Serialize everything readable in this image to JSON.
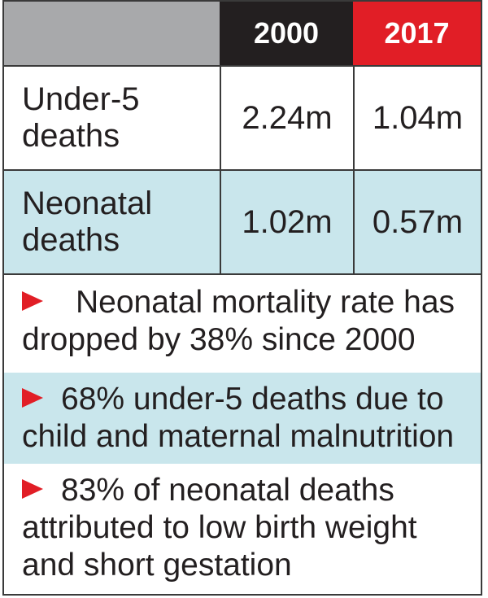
{
  "colors": {
    "header_gray": "#a8a9ab",
    "header_dark": "#231f20",
    "header_red": "#e11e26",
    "row_tint": "#c9e6ec",
    "arrow_red": "#e11e26"
  },
  "chart_data": {
    "type": "table",
    "columns": [
      "",
      "2000",
      "2017"
    ],
    "rows": [
      {
        "label": "Under-5 deaths",
        "label_lines": [
          "Under-5",
          "deaths"
        ],
        "values": [
          "2.24m",
          "1.04m"
        ]
      },
      {
        "label": "Neonatal deaths",
        "label_lines": [
          "Neonatal",
          "deaths"
        ],
        "values": [
          "1.02m",
          "0.57m"
        ]
      }
    ],
    "notes": [
      {
        "lines": [
          "Neonatal mortality rate has",
          "dropped by 38% since 2000"
        ]
      },
      {
        "lines": [
          "68% under-5 deaths due to",
          "child and maternal malnutrition"
        ]
      },
      {
        "lines": [
          "83% of neonatal deaths",
          "attributed to low birth weight",
          "and short gestation"
        ]
      }
    ]
  }
}
